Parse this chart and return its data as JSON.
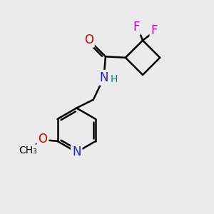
{
  "background_color": "#ebebeb",
  "atom_colors": {
    "C": "#000000",
    "N": "#2020cc",
    "O": "#cc0000",
    "F": "#cc00cc",
    "H": "#008080"
  },
  "bond_color": "#000000",
  "bond_width": 1.8,
  "font_size_atoms": 12,
  "font_size_H": 10,
  "font_size_methyl": 10
}
